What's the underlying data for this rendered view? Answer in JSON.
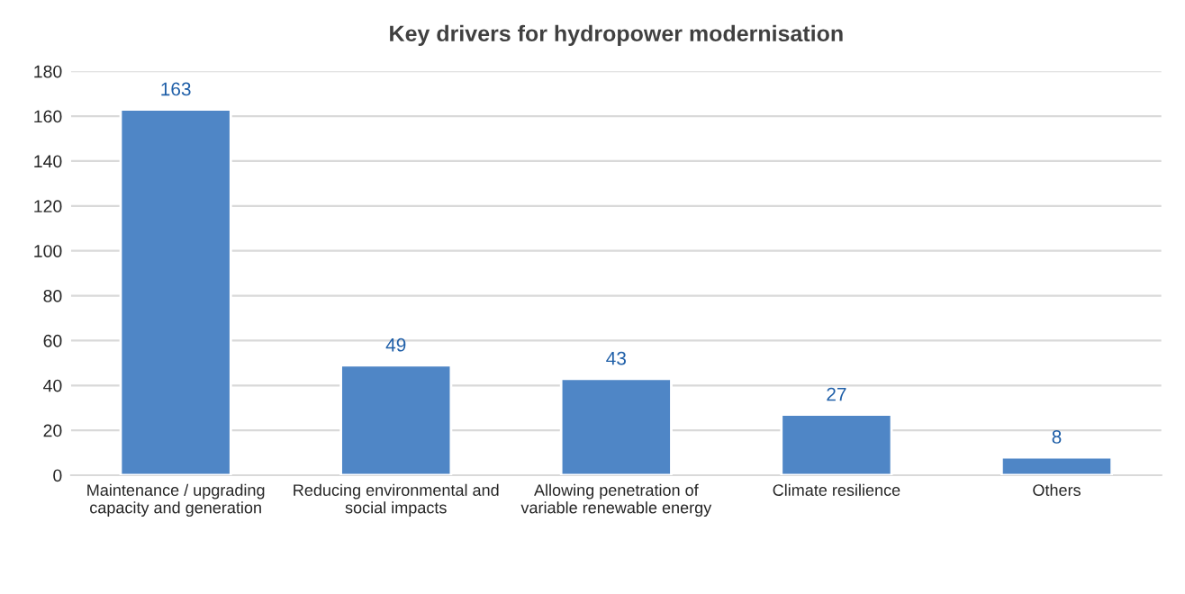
{
  "chart_data": {
    "type": "bar",
    "title": "Key drivers for hydropower modernisation",
    "categories": [
      "Maintenance / upgrading\ncapacity and generation",
      "Reducing environmental and\nsocial impacts",
      "Allowing penetration of\nvariable renewable energy",
      "Climate resilience",
      "Others"
    ],
    "values": [
      163,
      49,
      43,
      27,
      8
    ],
    "color": "#4f86c6",
    "ylim": [
      0,
      180
    ],
    "yticks": [
      0,
      20,
      40,
      60,
      80,
      100,
      120,
      140,
      160,
      180
    ],
    "grid": "y",
    "data_labels": true
  }
}
